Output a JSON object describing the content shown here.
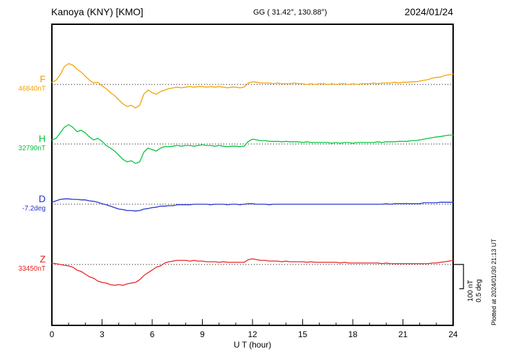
{
  "header": {
    "station_title": "Kanoya (KNY)  [KMO]",
    "coordinates": "GG ( 31.42°, 130.88°)",
    "date": "2024/01/24"
  },
  "scale_bar": {
    "label_nT": "100 nT",
    "label_deg": "0.5 deg"
  },
  "plotted_note": "Plotted at 2024/01/30 21:13 UT",
  "chart_data": {
    "type": "line",
    "title": "Kanoya (KNY) [KMO] magnetogram 2024/01/24",
    "xlabel": "U T (hour)",
    "x_range": [
      0,
      24
    ],
    "x_ticks": [
      0,
      3,
      6,
      9,
      12,
      15,
      18,
      21,
      24
    ],
    "x_minor_step": 1,
    "x_step_hours": 0.25,
    "grid": "dotted baseline per component",
    "legend_position": "left margin, one colored label per trace",
    "scale": {
      "nT_per_div": 100,
      "deg_per_div": 0.5
    },
    "series": [
      {
        "name": "F",
        "unit": "nT",
        "base": 46840,
        "base_label": "46840nT",
        "color": "#f2a200",
        "offsets": [
          9,
          17,
          40,
          74,
          86,
          80,
          63,
          51,
          34,
          17,
          6,
          9,
          -6,
          -17,
          -34,
          -46,
          -63,
          -80,
          -91,
          -86,
          -97,
          -86,
          -40,
          -23,
          -34,
          -40,
          -29,
          -23,
          -17,
          -14,
          -11,
          -14,
          -11,
          -9,
          -11,
          -9,
          -9,
          -11,
          -9,
          -11,
          -9,
          -11,
          -14,
          -11,
          -11,
          -14,
          -11,
          6,
          11,
          9,
          6,
          6,
          6,
          3,
          6,
          3,
          3,
          3,
          6,
          3,
          3,
          0,
          3,
          0,
          3,
          3,
          0,
          3,
          0,
          3,
          3,
          0,
          3,
          0,
          3,
          3,
          3,
          6,
          3,
          6,
          6,
          6,
          9,
          6,
          9,
          9,
          11,
          11,
          14,
          17,
          20,
          26,
          29,
          31,
          37,
          40,
          43
        ]
      },
      {
        "name": "H",
        "unit": "nT",
        "base": 32790,
        "base_label": "32790nT",
        "color": "#00c53c",
        "offsets": [
          17,
          23,
          46,
          69,
          80,
          69,
          51,
          57,
          46,
          29,
          17,
          23,
          11,
          -6,
          -17,
          -29,
          -46,
          -63,
          -74,
          -69,
          -80,
          -74,
          -34,
          -17,
          -23,
          -29,
          -17,
          -11,
          -11,
          -9,
          -6,
          -9,
          -6,
          -6,
          -9,
          -6,
          -3,
          -6,
          -6,
          -9,
          -6,
          -9,
          -11,
          -9,
          -9,
          -11,
          -9,
          11,
          20,
          17,
          14,
          14,
          11,
          11,
          11,
          9,
          11,
          9,
          9,
          9,
          6,
          9,
          6,
          6,
          6,
          6,
          6,
          3,
          6,
          3,
          6,
          6,
          3,
          6,
          6,
          6,
          6,
          6,
          9,
          6,
          9,
          9,
          9,
          11,
          11,
          11,
          14,
          14,
          17,
          20,
          23,
          26,
          29,
          31,
          34,
          37,
          37
        ]
      },
      {
        "name": "D",
        "unit": "deg",
        "base": -7.2,
        "base_label": "-7.2deg",
        "color": "#2233cc",
        "offsets": [
          0.04,
          0.07,
          0.1,
          0.11,
          0.11,
          0.1,
          0.1,
          0.09,
          0.09,
          0.07,
          0.06,
          0.04,
          0.01,
          -0.01,
          -0.04,
          -0.07,
          -0.1,
          -0.11,
          -0.13,
          -0.13,
          -0.14,
          -0.13,
          -0.1,
          -0.09,
          -0.07,
          -0.06,
          -0.04,
          -0.04,
          -0.03,
          -0.03,
          -0.01,
          -0.01,
          -0.01,
          -0.01,
          0,
          0,
          0,
          0,
          -0.01,
          0,
          0,
          0,
          -0.01,
          0,
          0,
          -0.01,
          0,
          0.01,
          0.01,
          0,
          0,
          0,
          -0.01,
          0,
          0,
          0,
          0,
          0,
          0,
          0,
          0,
          0,
          0,
          0,
          0,
          0,
          0,
          0,
          0,
          0,
          0,
          0,
          0,
          0,
          0,
          0,
          0,
          0,
          0,
          0,
          0.01,
          0,
          0.01,
          0.01,
          0.01,
          0.01,
          0.01,
          0.01,
          0.01,
          0.03,
          0.03,
          0.03,
          0.03,
          0.04,
          0.04,
          0.04,
          0.04
        ]
      },
      {
        "name": "Z",
        "unit": "nT",
        "base": 33450,
        "base_label": "33450nT",
        "color": "#e82020",
        "offsets": [
          6,
          3,
          0,
          -3,
          -6,
          -11,
          -23,
          -29,
          -40,
          -51,
          -57,
          -69,
          -74,
          -77,
          -83,
          -86,
          -83,
          -86,
          -80,
          -77,
          -74,
          -63,
          -46,
          -34,
          -23,
          -11,
          -6,
          6,
          11,
          14,
          17,
          17,
          17,
          14,
          17,
          14,
          14,
          11,
          11,
          11,
          9,
          11,
          9,
          9,
          9,
          9,
          9,
          20,
          23,
          20,
          17,
          17,
          14,
          14,
          14,
          11,
          14,
          11,
          11,
          11,
          11,
          9,
          11,
          9,
          9,
          9,
          9,
          9,
          9,
          6,
          9,
          6,
          6,
          6,
          6,
          6,
          6,
          6,
          6,
          3,
          6,
          3,
          3,
          3,
          3,
          3,
          3,
          3,
          3,
          3,
          3,
          6,
          6,
          9,
          11,
          14,
          17
        ]
      }
    ]
  }
}
